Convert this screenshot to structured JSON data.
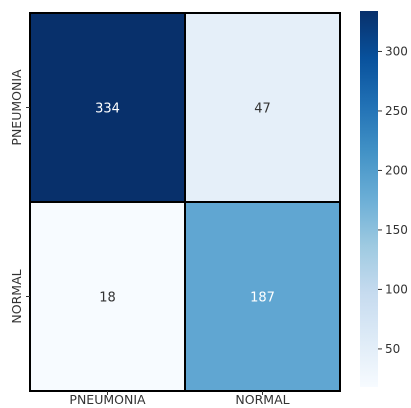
{
  "chart_data": {
    "type": "heatmap",
    "x_categories": [
      "PNEUMONIA",
      "NORMAL"
    ],
    "y_categories": [
      "PNEUMONIA",
      "NORMAL"
    ],
    "values": [
      [
        334,
        47
      ],
      [
        18,
        187
      ]
    ],
    "color_range": [
      18,
      334
    ],
    "colormap": "Blues",
    "colors": {
      "scale": [
        "#f7fbff",
        "#deebf7",
        "#c6dbef",
        "#9ecae1",
        "#6baed6",
        "#4292c6",
        "#2171b5",
        "#08519c",
        "#08306b"
      ],
      "dark_text": "#333333",
      "light_text": "#ffffff",
      "cell_border": "#000000"
    },
    "colorbar": {
      "ticks": [
        "50",
        "100",
        "150",
        "200",
        "250",
        "300"
      ],
      "tick_values": [
        50,
        100,
        150,
        200,
        250,
        300
      ]
    },
    "title": "",
    "xlabel": "",
    "ylabel": "",
    "annotations": [
      "334",
      "47",
      "18",
      "187"
    ],
    "grid": false,
    "legend": "colorbar-right"
  }
}
